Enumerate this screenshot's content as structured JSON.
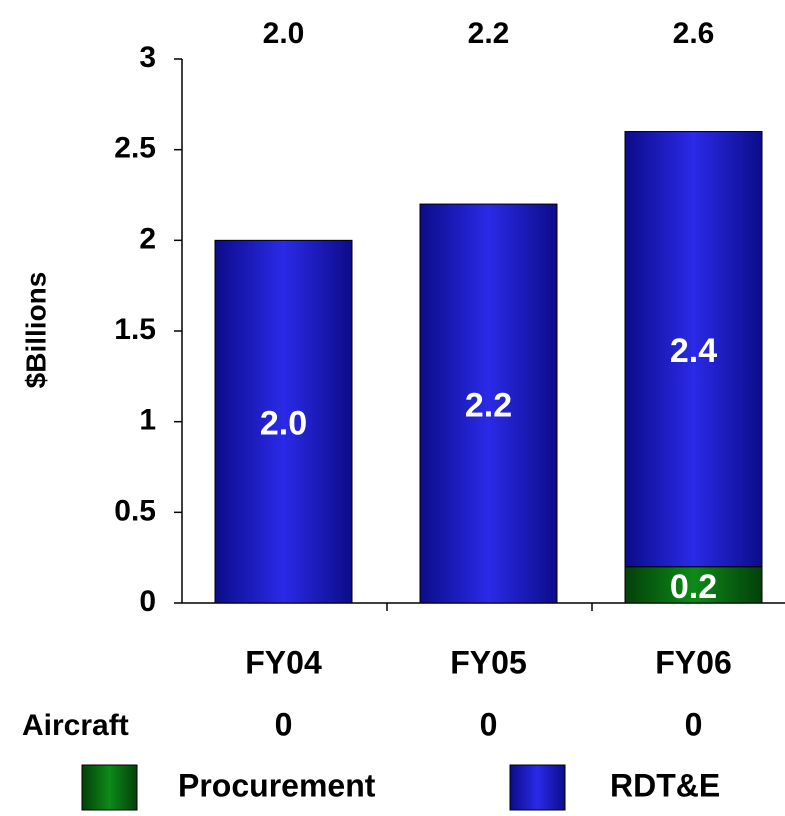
{
  "chart_data": {
    "type": "stacked_bar",
    "categories": [
      "FY04",
      "FY05",
      "FY06"
    ],
    "series": [
      {
        "name": "Procurement",
        "color": "#0a6b12",
        "values": [
          0,
          0,
          0.2
        ],
        "value_labels": [
          null,
          null,
          "0.2"
        ]
      },
      {
        "name": "RDT&E",
        "color": "#1a1ad0",
        "values": [
          2.0,
          2.2,
          2.4
        ],
        "value_labels": [
          "2.0",
          "2.2",
          "2.4"
        ]
      }
    ],
    "total_labels": [
      "2.0",
      "2.2",
      "2.6"
    ],
    "y_axis_label": "$Billions",
    "ylim": [
      0,
      3
    ],
    "yticks": [
      0,
      0.5,
      1,
      1.5,
      2,
      2.5,
      3
    ],
    "aircraft": {
      "label": "Aircraft",
      "values": [
        0,
        0,
        0
      ]
    }
  }
}
